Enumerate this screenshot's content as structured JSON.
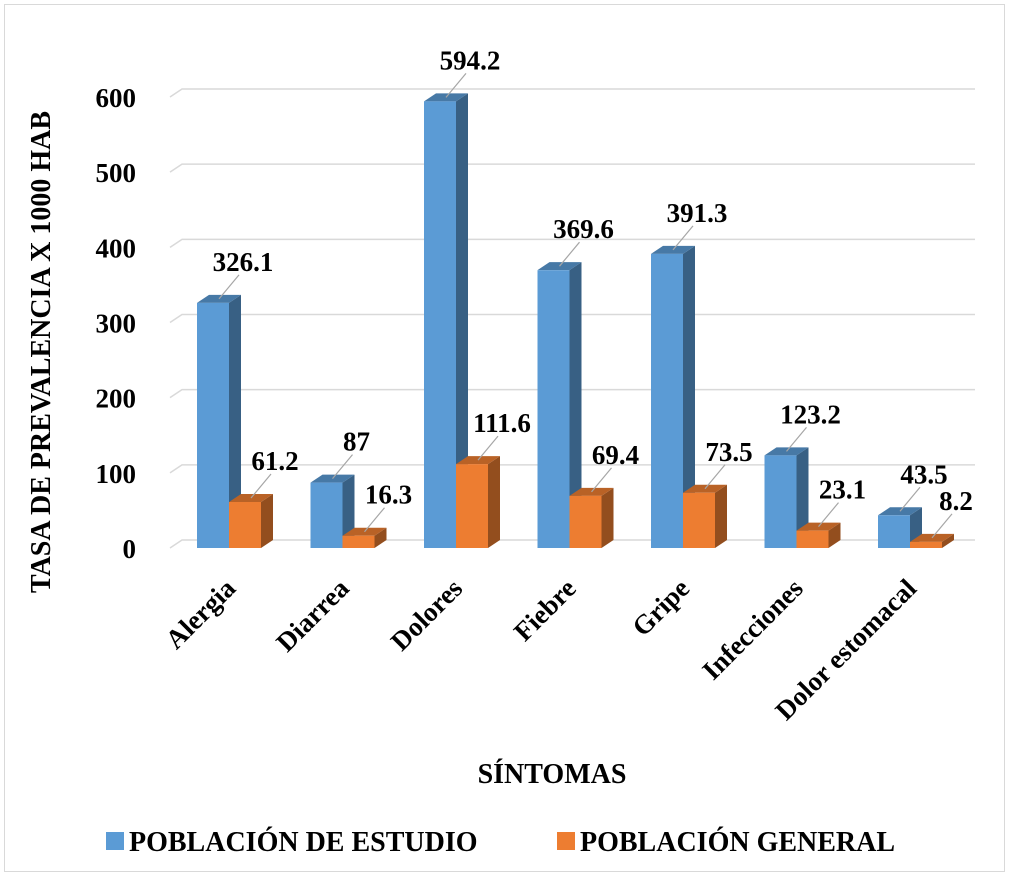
{
  "chart_data": {
    "type": "bar",
    "style": "3d-clustered-column",
    "categories": [
      "Alergia",
      "Diarrea",
      "Dolores",
      "Fiebre",
      "Gripe",
      "Infecciones",
      "Dolor estomacal"
    ],
    "series": [
      {
        "name": "POBLACIÓN DE ESTUDIO",
        "color": "#5b9bd5",
        "values": [
          326.1,
          87,
          594.2,
          369.6,
          391.3,
          123.2,
          43.5
        ],
        "labels": [
          "326.1",
          "87",
          "594.2",
          "369.6",
          "391.3",
          "123.2",
          "43.5"
        ]
      },
      {
        "name": "POBLACIÓN GENERAL",
        "color": "#ed7d31",
        "values": [
          61.2,
          16.3,
          111.6,
          69.4,
          73.5,
          23.1,
          8.2
        ],
        "labels": [
          "61.2",
          "16.3",
          "111.6",
          "69.4",
          "73.5",
          "23.1",
          "8.2"
        ]
      }
    ],
    "xlabel": "SÍNTOMAS",
    "ylabel": "TASA DE PREVALENCIA X 1000 HAB",
    "ylim": [
      0,
      600
    ],
    "yticks": [
      "0",
      "100",
      "200",
      "300",
      "400",
      "500",
      "600"
    ],
    "grid": true,
    "legend_position": "bottom"
  }
}
